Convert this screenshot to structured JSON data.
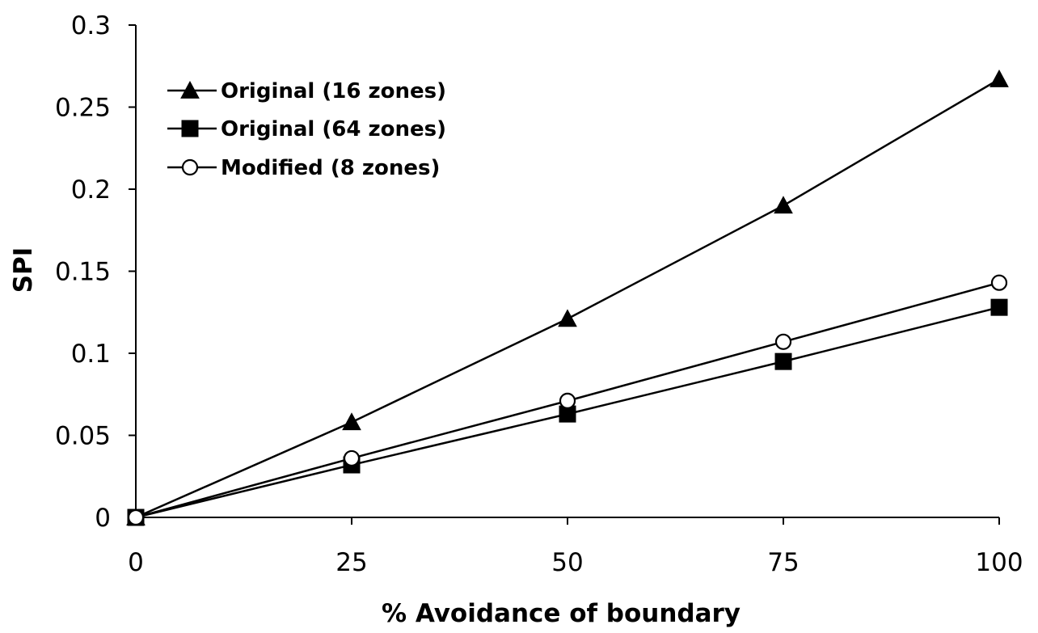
{
  "chart_data": {
    "type": "line",
    "title": "",
    "xlabel": "% Avoidance of boundary",
    "ylabel": "SPI",
    "x": [
      0,
      25,
      50,
      75,
      100
    ],
    "xticks": [
      "0",
      "25",
      "50",
      "75",
      "100"
    ],
    "yticks": [
      "0",
      "0.05",
      "0.1",
      "0.15",
      "0.2",
      "0.25",
      "0.3"
    ],
    "xlim": [
      0,
      100
    ],
    "ylim": [
      0,
      0.3
    ],
    "grid": false,
    "legend_position": "top-left",
    "series": [
      {
        "name": "Original (16 zones)",
        "marker": "triangle-filled",
        "values": [
          0,
          0.058,
          0.121,
          0.19,
          0.267
        ]
      },
      {
        "name": "Original (64 zones)",
        "marker": "square-filled",
        "values": [
          0,
          0.032,
          0.063,
          0.095,
          0.128
        ]
      },
      {
        "name": "Modified (8 zones)",
        "marker": "circle-open",
        "values": [
          0,
          0.036,
          0.071,
          0.107,
          0.143
        ]
      }
    ],
    "colors": {
      "line": "#000000",
      "marker_fill": "#000000",
      "open_marker_fill": "#ffffff"
    }
  }
}
